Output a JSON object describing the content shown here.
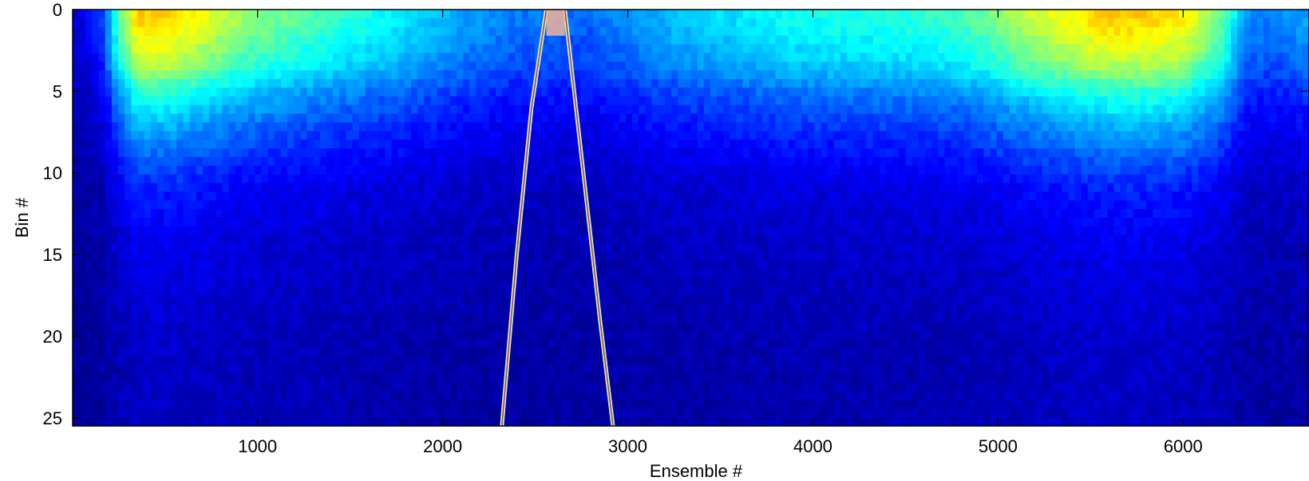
{
  "chart_data": {
    "type": "heatmap",
    "title": "",
    "xlabel": "Ensemble #",
    "ylabel": "Bin #",
    "xlim": [
      1,
      6680
    ],
    "ylim": [
      0,
      25.5
    ],
    "y_inverted": true,
    "x_ticks": [
      1000,
      2000,
      3000,
      4000,
      5000,
      6000
    ],
    "y_ticks": [
      0,
      5,
      10,
      15,
      20,
      25
    ],
    "colormap": "jet",
    "colormap_stops": [
      "#00008f",
      "#0000ff",
      "#0080ff",
      "#00ffff",
      "#80ff80",
      "#ffff00",
      "#ff8000",
      "#ff0000",
      "#800000"
    ],
    "grid": false,
    "legend": "none",
    "bin_profile_bins": [
      0,
      1,
      2,
      3,
      4,
      5,
      7,
      9,
      11,
      14,
      17,
      20,
      25.5
    ],
    "bin_profile_values": [
      0.62,
      0.6,
      0.56,
      0.52,
      0.46,
      0.38,
      0.28,
      0.2,
      0.14,
      0.1,
      0.08,
      0.06,
      0.05
    ],
    "ensemble_intensity_x": [
      1,
      150,
      250,
      350,
      500,
      700,
      900,
      1200,
      1500,
      1800,
      2100,
      2400,
      2600,
      2800,
      3000,
      3300,
      3600,
      3900,
      4200,
      4500,
      4800,
      5000,
      5200,
      5400,
      5600,
      5800,
      6000,
      6200,
      6350,
      6500,
      6680
    ],
    "ensemble_intensity": [
      0.1,
      0.25,
      0.7,
      1.05,
      1.05,
      0.95,
      0.82,
      0.72,
      0.64,
      0.55,
      0.45,
      0.38,
      0.36,
      0.35,
      0.42,
      0.5,
      0.55,
      0.6,
      0.62,
      0.64,
      0.68,
      0.78,
      0.9,
      0.98,
      1.05,
      1.05,
      1.0,
      0.75,
      0.4,
      0.38,
      0.45
    ],
    "trace_track": [
      {
        "name": "",
        "x": [
          2320,
          2400,
          2480,
          2560
        ],
        "y": [
          25.5,
          15,
          6,
          0
        ]
      },
      {
        "name": "",
        "x": [
          2660,
          2760,
          2850,
          2920
        ],
        "y": [
          0,
          10,
          19,
          25.5
        ]
      }
    ]
  }
}
